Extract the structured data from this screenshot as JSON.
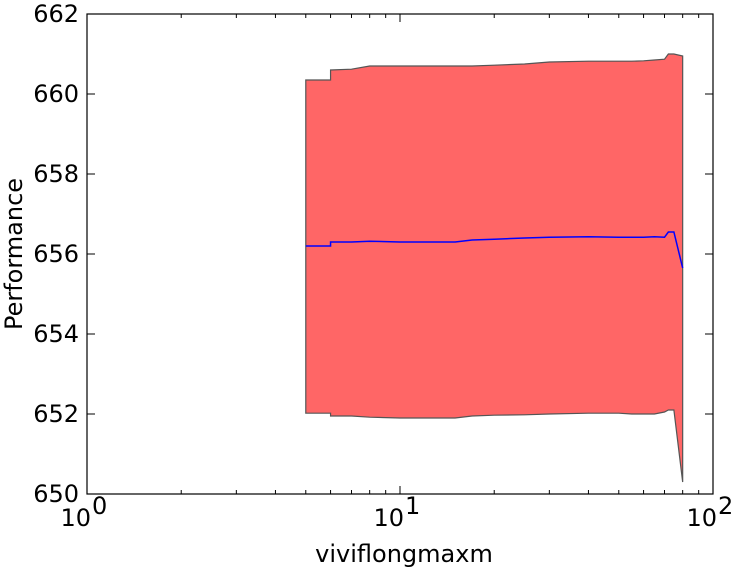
{
  "chart_data": {
    "type": "area",
    "title": "",
    "xlabel": "viviflongmaxm",
    "ylabel": "Performance",
    "xscale": "log",
    "xlim": [
      1,
      100
    ],
    "ylim": [
      650,
      662
    ],
    "grid": false,
    "legend": "none",
    "x_tick_labels": [
      {
        "value": 1,
        "base": "10",
        "exp": "0"
      },
      {
        "value": 10,
        "base": "10",
        "exp": "1"
      },
      {
        "value": 100,
        "base": "10",
        "exp": "2"
      }
    ],
    "y_ticks": [
      650,
      652,
      654,
      656,
      658,
      660,
      662
    ],
    "y_tick_labels": [
      "650",
      "652",
      "654",
      "656",
      "658",
      "660",
      "662"
    ],
    "colors": {
      "band_fill": "#ff6666",
      "band_edge": "#555555",
      "mean_line": "#0000ff"
    },
    "series": [
      {
        "role": "mean",
        "x": [
          5,
          6,
          6,
          7,
          8,
          10,
          12,
          15,
          17,
          20,
          25,
          30,
          40,
          50,
          55,
          60,
          65,
          70,
          72,
          75,
          80
        ],
        "values": [
          656.2,
          656.2,
          656.3,
          656.3,
          656.32,
          656.3,
          656.3,
          656.3,
          656.35,
          656.37,
          656.4,
          656.42,
          656.43,
          656.42,
          656.42,
          656.42,
          656.43,
          656.42,
          656.55,
          656.55,
          655.65
        ]
      },
      {
        "role": "upper",
        "x": [
          5,
          6,
          6,
          7,
          8,
          10,
          12,
          15,
          17,
          20,
          25,
          30,
          40,
          50,
          55,
          60,
          65,
          70,
          72,
          75,
          80
        ],
        "values": [
          660.35,
          660.35,
          660.6,
          660.62,
          660.7,
          660.7,
          660.7,
          660.7,
          660.7,
          660.72,
          660.75,
          660.8,
          660.82,
          660.82,
          660.82,
          660.83,
          660.85,
          660.87,
          661.0,
          661.0,
          660.95
        ]
      },
      {
        "role": "lower",
        "x": [
          5,
          6,
          6,
          7,
          8,
          10,
          12,
          15,
          17,
          20,
          25,
          30,
          40,
          50,
          55,
          60,
          65,
          70,
          72,
          75,
          80
        ],
        "values": [
          652.02,
          652.02,
          651.95,
          651.95,
          651.92,
          651.9,
          651.9,
          651.9,
          651.95,
          651.97,
          651.98,
          652.0,
          652.02,
          652.02,
          652.0,
          652.0,
          652.0,
          652.05,
          652.1,
          652.1,
          650.3
        ]
      }
    ]
  }
}
